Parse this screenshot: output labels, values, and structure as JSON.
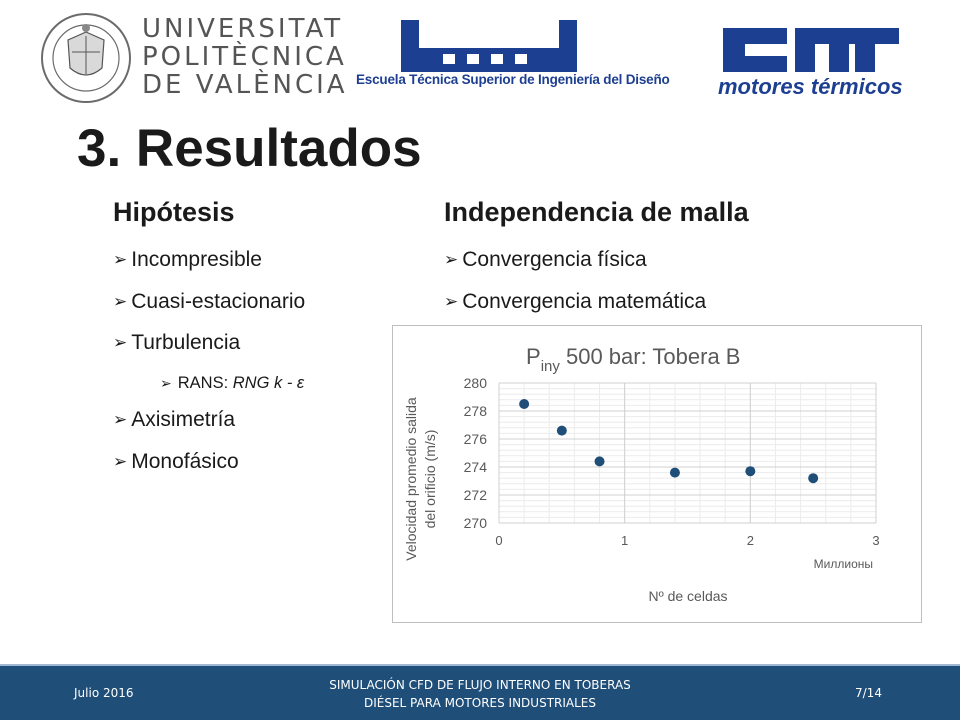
{
  "header": {
    "university_lines": [
      "UNIVERSITAT",
      "POLITÈCNICA",
      "DE VALÈNCIA"
    ],
    "seal_text": "UNIVERSITAT POLITÈCNICA DE VALÈNCIA",
    "school_name": "Escuela Técnica Superior de Ingeniería del Diseño",
    "cmt_caption": "motores térmicos"
  },
  "slide": {
    "title": "3. Resultados",
    "left_column": {
      "heading": "Hipótesis",
      "items": [
        "Incompresible",
        "Cuasi-estacionario",
        "Turbulencia"
      ],
      "sub_item": {
        "prefix": "RANS: ",
        "model": "RNG k - ε"
      },
      "items_after": [
        "Axisimetría",
        "Monofásico"
      ]
    },
    "right_column": {
      "heading": "Independencia de malla",
      "items": [
        "Convergencia física",
        "Convergencia matemática"
      ]
    },
    "bullet_glyph": "➢"
  },
  "chart_data": {
    "type": "scatter",
    "title_main": "P",
    "title_sub": "iny",
    "title_rest": " 500 bar: Tobera B",
    "ylabel_line1": "Velocidad promedio salida",
    "ylabel_line2": "del orificio (m/s)",
    "xlabel": "Nº de celdas",
    "x_unit_label": "Миллионы",
    "xlim": [
      0,
      3
    ],
    "ylim": [
      270,
      280
    ],
    "x_ticks": [
      "0",
      "1",
      "2",
      "3"
    ],
    "y_ticks": [
      "270",
      "272",
      "274",
      "276",
      "278",
      "280"
    ],
    "grid": true,
    "marker_color": "#1f4e79",
    "points": [
      {
        "x": 0.2,
        "y": 278.5
      },
      {
        "x": 0.5,
        "y": 276.6
      },
      {
        "x": 0.8,
        "y": 274.4
      },
      {
        "x": 1.4,
        "y": 273.6
      },
      {
        "x": 2.0,
        "y": 273.7
      },
      {
        "x": 2.5,
        "y": 273.2
      }
    ]
  },
  "footer": {
    "date": "Julio 2016",
    "center_line1": "SIMULACIÓN CFD DE FLUJO INTERNO EN TOBERAS",
    "center_line2": "DIÉSEL PARA MOTORES INDUSTRIALES",
    "page": "7/14",
    "background": "#1f4e79"
  }
}
